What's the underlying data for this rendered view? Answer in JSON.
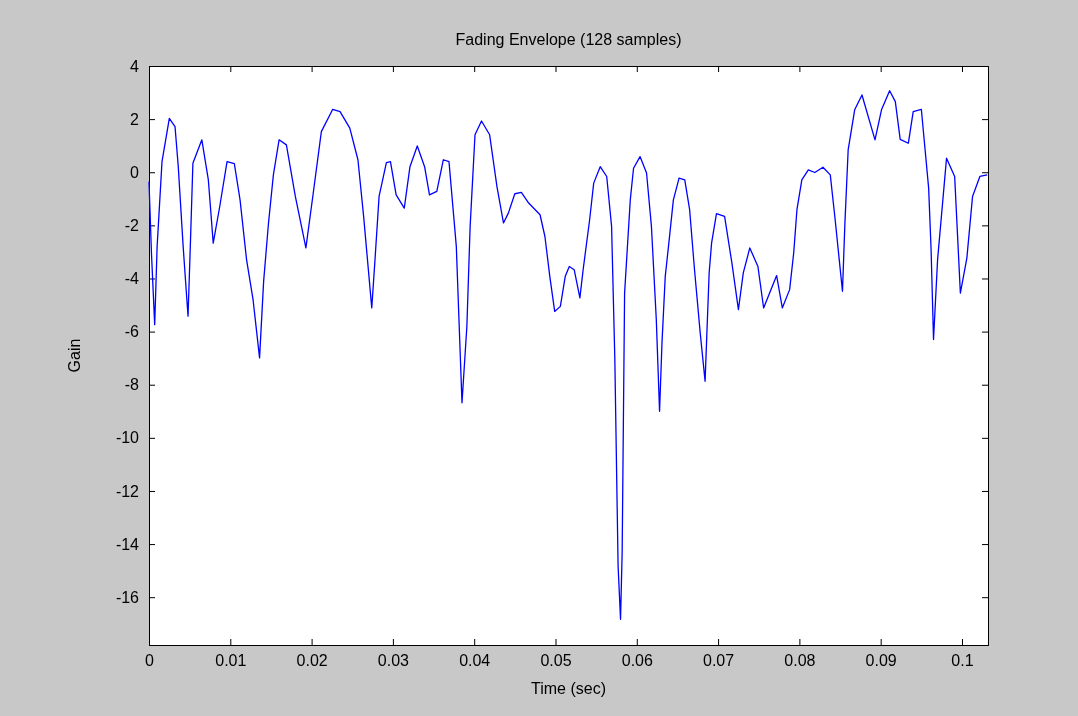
{
  "chart_data": {
    "type": "line",
    "title": "Fading Envelope (128 samples)",
    "xlabel": "Time (sec)",
    "ylabel": "Gain",
    "xlim": [
      0,
      0.1032
    ],
    "ylim": [
      -17.8,
      4
    ],
    "xticks": [
      0,
      0.01,
      0.02,
      0.03,
      0.04,
      0.05,
      0.06,
      0.07,
      0.08,
      0.09,
      0.1
    ],
    "yticks": [
      -16,
      -14,
      -12,
      -10,
      -8,
      -6,
      -4,
      -2,
      0,
      2,
      4
    ],
    "marker": "none",
    "line_style": "solid",
    "series": [
      {
        "color": "#0000ff",
        "x": [
          0,
          0.0003,
          0.0007,
          0.001,
          0.0016,
          0.0025,
          0.0032,
          0.0036,
          0.0042,
          0.0048,
          0.0051,
          0.0054,
          0.0065,
          0.0073,
          0.0079,
          0.0087,
          0.0096,
          0.0105,
          0.0112,
          0.012,
          0.0128,
          0.0136,
          0.0141,
          0.0147,
          0.0153,
          0.016,
          0.0169,
          0.018,
          0.0193,
          0.0202,
          0.0212,
          0.0226,
          0.0235,
          0.0247,
          0.0257,
          0.0264,
          0.0274,
          0.0278,
          0.0283,
          0.0292,
          0.0297,
          0.0304,
          0.0314,
          0.0321,
          0.033,
          0.0339,
          0.0345,
          0.0354,
          0.0362,
          0.0369,
          0.0378,
          0.0385,
          0.0391,
          0.0395,
          0.0401,
          0.0409,
          0.0419,
          0.0428,
          0.0436,
          0.0442,
          0.045,
          0.0458,
          0.0467,
          0.0481,
          0.0487,
          0.0493,
          0.0499,
          0.0506,
          0.0512,
          0.0517,
          0.0523,
          0.053,
          0.0534,
          0.0542,
          0.0547,
          0.0555,
          0.0563,
          0.0569,
          0.0573,
          0.0577,
          0.058,
          0.0582,
          0.0585,
          0.0592,
          0.0596,
          0.0604,
          0.0612,
          0.0618,
          0.0624,
          0.0628,
          0.0631,
          0.0635,
          0.0639,
          0.0645,
          0.0652,
          0.0659,
          0.0665,
          0.0671,
          0.0678,
          0.0684,
          0.0689,
          0.0692,
          0.0698,
          0.0708,
          0.0717,
          0.0725,
          0.0731,
          0.0739,
          0.0749,
          0.0756,
          0.0772,
          0.0779,
          0.0788,
          0.0793,
          0.0797,
          0.0803,
          0.0811,
          0.0819,
          0.0829,
          0.0838,
          0.0844,
          0.0849,
          0.0853,
          0.0856,
          0.086,
          0.0868,
          0.0877,
          0.0893,
          0.0901,
          0.0911,
          0.0918,
          0.0924,
          0.0934,
          0.094,
          0.095,
          0.0959,
          0.0962,
          0.0965,
          0.097,
          0.0981,
          0.0991,
          0.0998,
          0.1006,
          0.1013,
          0.1022,
          0.1031
        ],
        "values": [
          -0.36,
          -3.03,
          -5.74,
          -2.79,
          0.4,
          2.03,
          1.72,
          0.21,
          -2.79,
          -5.42,
          -2.61,
          0.34,
          1.22,
          -0.29,
          -2.67,
          -1.29,
          0.4,
          0.32,
          -1.04,
          -3.29,
          -4.8,
          -6.99,
          -4.11,
          -1.91,
          -0.1,
          1.22,
          1.03,
          -0.91,
          -2.85,
          -0.79,
          1.53,
          2.37,
          2.28,
          1.66,
          0.47,
          -1.66,
          -5.11,
          -3.29,
          -0.91,
          0.36,
          0.4,
          -0.85,
          -1.35,
          0.21,
          0.99,
          0.21,
          -0.85,
          -0.72,
          0.47,
          0.4,
          -2.79,
          -8.68,
          -5.8,
          -2.04,
          1.41,
          1.93,
          1.41,
          -0.54,
          -1.91,
          -1.54,
          -0.81,
          -0.76,
          -1.16,
          -1.6,
          -2.42,
          -3.92,
          -5.24,
          -5.05,
          -3.92,
          -3.55,
          -3.67,
          -4.73,
          -3.67,
          -1.79,
          -0.41,
          0.21,
          -0.16,
          -2.04,
          -7.05,
          -14.82,
          -16.83,
          -14.32,
          -4.55,
          -1.04,
          0.15,
          0.59,
          -0.03,
          -2.04,
          -5.55,
          -9.0,
          -6.42,
          -3.92,
          -2.79,
          -1.04,
          -0.22,
          -0.29,
          -1.41,
          -3.67,
          -6.05,
          -7.87,
          -3.79,
          -2.67,
          -1.56,
          -1.66,
          -3.42,
          -5.17,
          -3.79,
          -2.85,
          -3.55,
          -5.11,
          -3.89,
          -5.11,
          -4.42,
          -3.04,
          -1.41,
          -0.29,
          0.09,
          -0.01,
          0.19,
          -0.1,
          -1.79,
          -3.29,
          -4.48,
          -1.91,
          0.84,
          2.35,
          2.91,
          1.22,
          2.35,
          3.07,
          2.66,
          1.24,
          1.09,
          2.28,
          2.37,
          -0.6,
          -2.92,
          -6.3,
          -3.29,
          0.53,
          -0.16,
          -4.55,
          -3.23,
          -0.91,
          -0.16,
          -0.1
        ]
      }
    ]
  }
}
